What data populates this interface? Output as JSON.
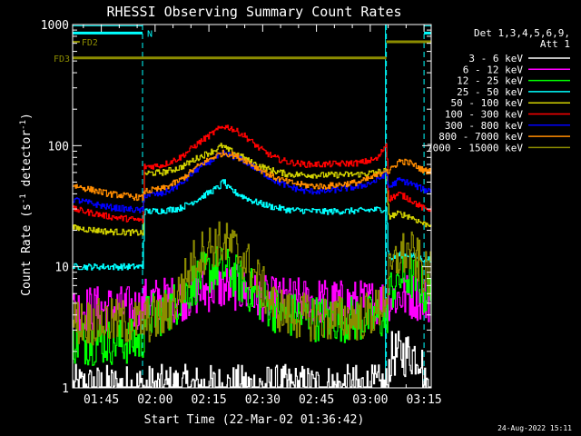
{
  "chart_data": {
    "type": "line",
    "title": "RHESSI Observing Summary Count Rates",
    "xlabel": "Start Time (22-Mar-02 01:36:42)",
    "ylabel": "Count Rate (s",
    "ylabel_sup": "-1",
    "ylabel_tail": " detector",
    "ylabel_sup2": "-1",
    "ylabel_close": ")",
    "y_scale": "log",
    "ylim": [
      1,
      1000
    ],
    "x_range_min": [
      0,
      100
    ],
    "x_tick_minutes": [
      8,
      23,
      38,
      53,
      68,
      83,
      98
    ],
    "x_ticks": [
      "01:45",
      "02:00",
      "02:15",
      "02:30",
      "02:45",
      "03:00",
      "03:15"
    ],
    "y_ticks": [
      {
        "value": 1,
        "label": "1"
      },
      {
        "value": 10,
        "label": "10"
      },
      {
        "value": 100,
        "label": "100"
      },
      {
        "value": 1000,
        "label": "1000"
      }
    ],
    "night_intervals_min": [
      [
        0,
        19.5
      ],
      [
        98,
        100
      ]
    ],
    "dashed_lines_min": [
      19.5,
      87.5,
      98
    ],
    "annotations": {
      "night_label": "N",
      "fd2_label": "FD2",
      "fd3_label": "FD3",
      "fd2_y": 720,
      "fd3_y": 530,
      "fd_color": "#8c8c00",
      "night_bar_y": 850,
      "night_color": "#00ffff",
      "dashed_color": "#00ffff"
    },
    "legend": {
      "header1": "Det 1,3,4,5,6,9,",
      "header2": "Att 1",
      "position": "top-right"
    },
    "series": [
      {
        "name": "3 - 6 keV",
        "color": "#ffffff",
        "noise": "spiky",
        "points": [
          [
            0,
            1
          ],
          [
            87.5,
            1
          ],
          [
            88,
            1.4
          ],
          [
            89,
            1.9
          ],
          [
            92,
            1.9
          ],
          [
            95,
            1.9
          ],
          [
            97,
            1.9
          ],
          [
            98,
            1
          ]
        ]
      },
      {
        "name": "6 - 12 keV",
        "color": "#ff00ff",
        "noise": "spiky",
        "points": [
          [
            0,
            4.5
          ],
          [
            19.5,
            4.5
          ],
          [
            20,
            5.2
          ],
          [
            25,
            5.3
          ],
          [
            30,
            5.5
          ],
          [
            35,
            6.2
          ],
          [
            40,
            6.8
          ],
          [
            45,
            6.8
          ],
          [
            50,
            5.8
          ],
          [
            55,
            5.3
          ],
          [
            60,
            5.3
          ],
          [
            65,
            5.2
          ],
          [
            70,
            5.2
          ],
          [
            75,
            5
          ],
          [
            80,
            5
          ],
          [
            87.5,
            5.2
          ],
          [
            88,
            5.5
          ],
          [
            92,
            5.7
          ],
          [
            95,
            5.7
          ],
          [
            98,
            5.4
          ]
        ]
      },
      {
        "name": "12 - 25 keV",
        "color": "#00ff00",
        "noise": "spiky",
        "points": [
          [
            0,
            2.4
          ],
          [
            19.5,
            2.4
          ],
          [
            20,
            3.8
          ],
          [
            25,
            4.2
          ],
          [
            28,
            4.8
          ],
          [
            32,
            6.5
          ],
          [
            36,
            8.5
          ],
          [
            40,
            9.8
          ],
          [
            44,
            9
          ],
          [
            48,
            7
          ],
          [
            52,
            5.5
          ],
          [
            56,
            4.5
          ],
          [
            60,
            4
          ],
          [
            70,
            3.7
          ],
          [
            80,
            3.7
          ],
          [
            87.5,
            3.8
          ],
          [
            88,
            6
          ],
          [
            91,
            8
          ],
          [
            94,
            8.3
          ],
          [
            97,
            7.2
          ],
          [
            98,
            6
          ]
        ]
      },
      {
        "name": "25 - 50 keV",
        "color": "#00ffff",
        "noise": "small",
        "points": [
          [
            0,
            10
          ],
          [
            19.5,
            10
          ],
          [
            20,
            28.5
          ],
          [
            25,
            29
          ],
          [
            30,
            30.5
          ],
          [
            34,
            35
          ],
          [
            38,
            41
          ],
          [
            41,
            46
          ],
          [
            42,
            52
          ],
          [
            43,
            45
          ],
          [
            46,
            40
          ],
          [
            50,
            35
          ],
          [
            55,
            31.5
          ],
          [
            60,
            29.5
          ],
          [
            70,
            28.5
          ],
          [
            80,
            29
          ],
          [
            87.5,
            30
          ],
          [
            88,
            11.5
          ],
          [
            91,
            12.5
          ],
          [
            94,
            12.5
          ],
          [
            98,
            11.5
          ]
        ]
      },
      {
        "name": "50 - 100 keV",
        "color": "#d2d200",
        "noise": "small",
        "points": [
          [
            0,
            21
          ],
          [
            10,
            19.5
          ],
          [
            19.5,
            19
          ],
          [
            20,
            59
          ],
          [
            25,
            60
          ],
          [
            30,
            66
          ],
          [
            35,
            80
          ],
          [
            40,
            93
          ],
          [
            41.5,
            100
          ],
          [
            43,
            93
          ],
          [
            46,
            85
          ],
          [
            50,
            72
          ],
          [
            55,
            63
          ],
          [
            60,
            58
          ],
          [
            70,
            57
          ],
          [
            80,
            58
          ],
          [
            87.5,
            62
          ],
          [
            88,
            26
          ],
          [
            91,
            27.5
          ],
          [
            94,
            26
          ],
          [
            98,
            22.5
          ]
        ]
      },
      {
        "name": "100 - 300 keV",
        "color": "#ff0000",
        "noise": "small",
        "points": [
          [
            0,
            30
          ],
          [
            10,
            26
          ],
          [
            19.5,
            24
          ],
          [
            20,
            67
          ],
          [
            25,
            69
          ],
          [
            30,
            80
          ],
          [
            35,
            105
          ],
          [
            40,
            133
          ],
          [
            42,
            145
          ],
          [
            44,
            140
          ],
          [
            48,
            120
          ],
          [
            52,
            95
          ],
          [
            56,
            80
          ],
          [
            60,
            73
          ],
          [
            65,
            70
          ],
          [
            70,
            70
          ],
          [
            80,
            72
          ],
          [
            85,
            78
          ],
          [
            87.5,
            105
          ],
          [
            88,
            36
          ],
          [
            91,
            40
          ],
          [
            94,
            36
          ],
          [
            98,
            30
          ]
        ]
      },
      {
        "name": "300 - 800 keV",
        "color": "#0000ff",
        "noise": "small",
        "points": [
          [
            0,
            36
          ],
          [
            10,
            31
          ],
          [
            19.5,
            29
          ],
          [
            20,
            39
          ],
          [
            25,
            40
          ],
          [
            30,
            48
          ],
          [
            35,
            65
          ],
          [
            40,
            80
          ],
          [
            42,
            85
          ],
          [
            44,
            83
          ],
          [
            48,
            74
          ],
          [
            52,
            62
          ],
          [
            56,
            52
          ],
          [
            60,
            46
          ],
          [
            65,
            42
          ],
          [
            70,
            42
          ],
          [
            80,
            46
          ],
          [
            85,
            52
          ],
          [
            87.5,
            60
          ],
          [
            88,
            45
          ],
          [
            91,
            52
          ],
          [
            94,
            49
          ],
          [
            98,
            43
          ]
        ]
      },
      {
        "name": "800 - 7000 keV",
        "color": "#ff8c00",
        "noise": "small",
        "points": [
          [
            0,
            47
          ],
          [
            10,
            40
          ],
          [
            19.5,
            37
          ],
          [
            20,
            42
          ],
          [
            25,
            44
          ],
          [
            30,
            52
          ],
          [
            35,
            68
          ],
          [
            40,
            83
          ],
          [
            42,
            87
          ],
          [
            44,
            85
          ],
          [
            48,
            76
          ],
          [
            52,
            64
          ],
          [
            56,
            55
          ],
          [
            60,
            50
          ],
          [
            65,
            47
          ],
          [
            70,
            46
          ],
          [
            80,
            50
          ],
          [
            85,
            57
          ],
          [
            87.5,
            65
          ],
          [
            88,
            60
          ],
          [
            91,
            75
          ],
          [
            94,
            72
          ],
          [
            98,
            62
          ]
        ]
      },
      {
        "name": "7000 - 15000 keV",
        "color": "#8c8c00",
        "noise": "spiky",
        "points": [
          [
            0,
            3.5
          ],
          [
            19.5,
            3.5
          ],
          [
            20,
            3.6
          ],
          [
            25,
            3.8
          ],
          [
            28,
            4.8
          ],
          [
            31,
            7.5
          ],
          [
            34,
            11.5
          ],
          [
            38,
            14.8
          ],
          [
            41,
            15.5
          ],
          [
            44,
            14.8
          ],
          [
            47,
            12.5
          ],
          [
            50,
            9.2
          ],
          [
            53,
            6.5
          ],
          [
            56,
            4.8
          ],
          [
            60,
            4
          ],
          [
            70,
            3.7
          ],
          [
            80,
            3.8
          ],
          [
            85,
            4.3
          ],
          [
            87.5,
            6
          ],
          [
            88,
            8
          ],
          [
            91,
            12.5
          ],
          [
            94,
            13
          ],
          [
            97,
            10.5
          ],
          [
            98,
            8.5
          ]
        ]
      }
    ]
  },
  "footer": {
    "timestamp": "24-Aug-2022 15:11"
  }
}
